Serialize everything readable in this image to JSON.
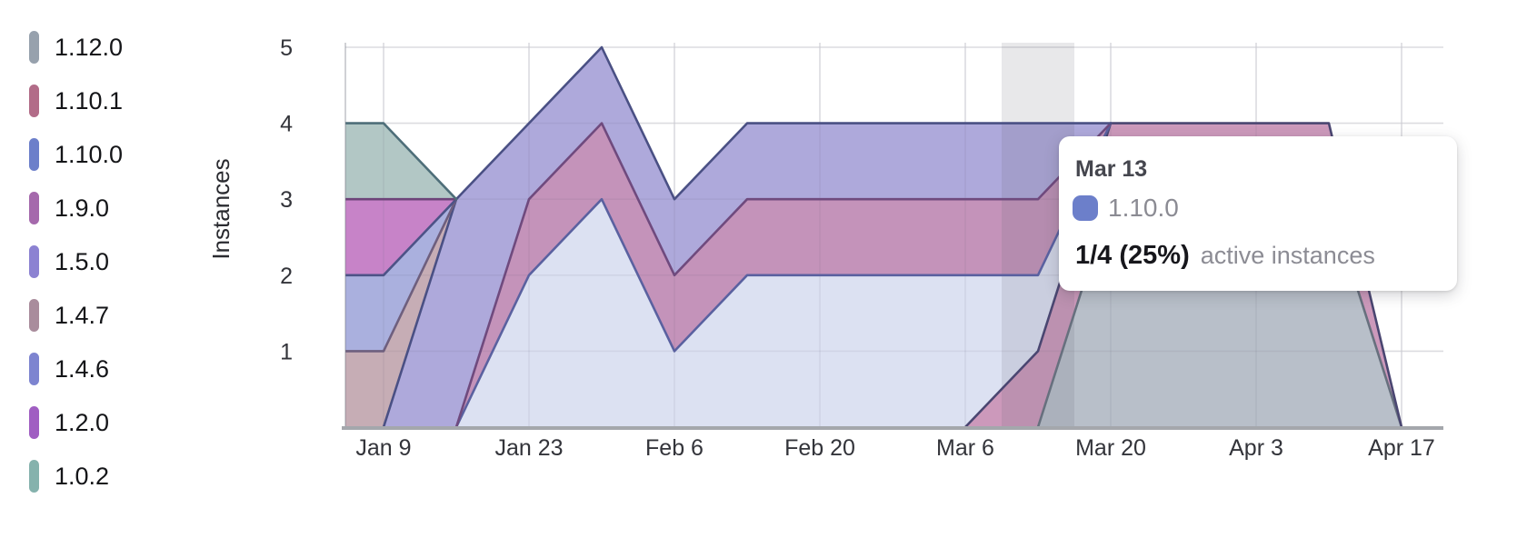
{
  "chart_data": {
    "type": "area",
    "stacked": true,
    "title": "",
    "xlabel": "",
    "ylabel": "Instances",
    "ylim": [
      0,
      5
    ],
    "y_tick_labels": [
      "1",
      "2",
      "3",
      "4",
      "5"
    ],
    "x_points": [
      "Jan 2",
      "Jan 9",
      "Jan 16",
      "Jan 23",
      "Jan 30",
      "Feb 6",
      "Feb 13",
      "Feb 20",
      "Feb 27",
      "Mar 6",
      "Mar 13",
      "Mar 20",
      "Mar 27",
      "Apr 3",
      "Apr 10",
      "Apr 17"
    ],
    "x_tick_labels": [
      "Jan 9",
      "Jan 23",
      "Feb 6",
      "Feb 20",
      "Mar 6",
      "Mar 20",
      "Apr 3",
      "Apr 17"
    ],
    "grid": true,
    "legend_position": "left",
    "series": [
      {
        "name": "1.12.0",
        "marker_color": "#97a1ad",
        "fill_color": "#b8bfc9",
        "line_color": "#67707e",
        "values": [
          null,
          null,
          null,
          null,
          null,
          null,
          null,
          null,
          null,
          null,
          0,
          3,
          3,
          3,
          3,
          0
        ]
      },
      {
        "name": "1.10.1",
        "marker_color": "#b26c88",
        "fill_color": "#cc99bb",
        "line_color": "#4a4671",
        "values": [
          null,
          null,
          null,
          null,
          null,
          null,
          null,
          null,
          null,
          0,
          1,
          1,
          1,
          1,
          1,
          0
        ]
      },
      {
        "name": "1.10.0",
        "marker_color": "#6c7fca",
        "fill_color": "#dce1f2",
        "line_color": "#5a61a0",
        "values": [
          null,
          null,
          0,
          2,
          3,
          1,
          2,
          2,
          2,
          2,
          1,
          0,
          null,
          null,
          null,
          null
        ]
      },
      {
        "name": "1.9.0",
        "marker_color": "#a569ac",
        "fill_color": "#c493ba",
        "line_color": "#6f4a7e",
        "values": [
          null,
          null,
          0,
          1,
          1,
          1,
          1,
          1,
          1,
          1,
          1,
          0,
          null,
          null,
          null,
          null
        ]
      },
      {
        "name": "1.5.0",
        "marker_color": "#8c82d2",
        "fill_color": "#aea9db",
        "line_color": "#4a5084",
        "values": [
          null,
          0,
          3,
          1,
          1,
          1,
          1,
          1,
          1,
          1,
          1,
          0,
          null,
          null,
          null,
          null
        ]
      },
      {
        "name": "1.4.7",
        "marker_color": "#a98c9c",
        "fill_color": "#c6adb5",
        "line_color": "#6e5f7e",
        "values": [
          1,
          1,
          0,
          null,
          null,
          null,
          null,
          null,
          null,
          null,
          null,
          null,
          null,
          null,
          null,
          null
        ]
      },
      {
        "name": "1.4.6",
        "marker_color": "#7d84d0",
        "fill_color": "#aab0de",
        "line_color": "#4d5387",
        "values": [
          1,
          1,
          0,
          null,
          null,
          null,
          null,
          null,
          null,
          null,
          null,
          null,
          null,
          null,
          null,
          null
        ]
      },
      {
        "name": "1.2.0",
        "marker_color": "#a05ec2",
        "fill_color": "#c783c8",
        "line_color": "#6d4479",
        "values": [
          1,
          1,
          0,
          null,
          null,
          null,
          null,
          null,
          null,
          null,
          null,
          null,
          null,
          null,
          null,
          null
        ]
      },
      {
        "name": "1.0.2",
        "marker_color": "#85b2ad",
        "fill_color": "#b2c7c5",
        "line_color": "#4e6e79",
        "values": [
          1,
          1,
          0,
          null,
          null,
          null,
          null,
          null,
          null,
          null,
          null,
          null,
          null,
          null,
          null,
          null
        ]
      }
    ],
    "hover": {
      "x_label": "Mar 13",
      "point_index": 10,
      "band_color": "rgba(100,104,114,0.15)"
    },
    "axis_color": "#a4a7ac",
    "grid_color": "#e9eaec",
    "tick_text_color": "#33343a"
  },
  "tooltip": {
    "date": "Mar 13",
    "series": "1.10.0",
    "swatch_color": "#6c7fca",
    "value": "1/4 (25%)",
    "caption": "active instances"
  }
}
